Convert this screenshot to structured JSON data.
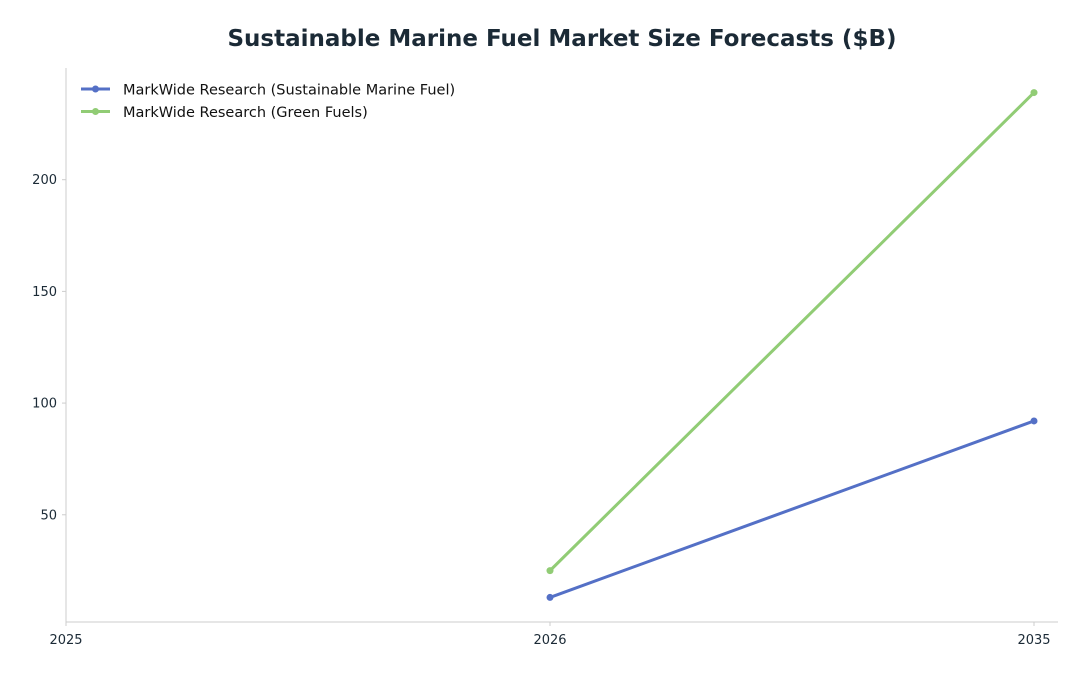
{
  "chart_data": {
    "type": "line",
    "title": "Sustainable Marine Fuel Market Size Forecasts ($B)",
    "xlabel": "",
    "ylabel": "",
    "categories": [
      "2025",
      "2026",
      "2035"
    ],
    "ylim": [
      2,
      250
    ],
    "yticks": [
      50,
      100,
      150,
      200
    ],
    "grid": false,
    "legend_position": "top-left",
    "series": [
      {
        "name": "MarkWide Research (Sustainable Marine Fuel)",
        "color": "#5470c6",
        "values": [
          null,
          13,
          92
        ]
      },
      {
        "name": "MarkWide Research (Green Fuels)",
        "color": "#91cc75",
        "values": [
          null,
          25,
          239
        ]
      }
    ]
  }
}
